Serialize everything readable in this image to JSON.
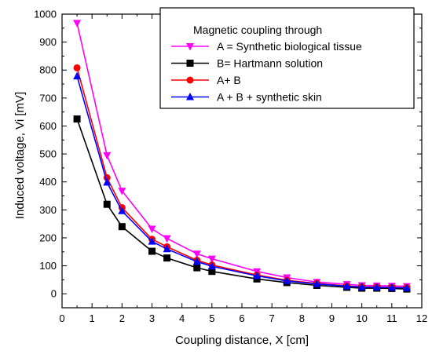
{
  "chart_data": {
    "type": "line",
    "xlabel": "Coupling distance, X [cm]",
    "ylabel": "Induced voltage, Vi [mV]",
    "xlim": [
      0,
      12
    ],
    "ylim": [
      -50,
      1000
    ],
    "xticks": [
      "0",
      "1",
      "2",
      "3",
      "4",
      "5",
      "6",
      "7",
      "8",
      "9",
      "10",
      "11",
      "12"
    ],
    "yticks": [
      "0",
      "100",
      "200",
      "300",
      "400",
      "500",
      "600",
      "700",
      "800",
      "900",
      "1000"
    ],
    "grid": false,
    "legend": {
      "title": "Magnetic coupling through",
      "placement": "top-right"
    },
    "x": [
      0.5,
      1.5,
      2,
      3,
      3.5,
      4.5,
      5,
      6.5,
      7.5,
      8.5,
      9.5,
      10,
      10.5,
      11,
      11.5
    ],
    "series": [
      {
        "name": "A = Synthetic biological tissue",
        "color": "#ff00ff",
        "marker": "triangle-down",
        "values": [
          968,
          495,
          368,
          232,
          198,
          143,
          125,
          80,
          58,
          42,
          34,
          30,
          29,
          28,
          27
        ]
      },
      {
        "name": "B= Hartmann solution",
        "color": "#000000",
        "marker": "square",
        "values": [
          625,
          320,
          240,
          152,
          128,
          93,
          80,
          53,
          40,
          30,
          23,
          20,
          20,
          19,
          17
        ]
      },
      {
        "name": "A+ B",
        "color": "#ff0000",
        "marker": "circle",
        "values": [
          808,
          415,
          308,
          195,
          168,
          120,
          103,
          67,
          48,
          37,
          28,
          25,
          24,
          23,
          22
        ]
      },
      {
        "name": "A + B + synthetic skin",
        "color": "#0000ff",
        "marker": "triangle-up",
        "values": [
          778,
          398,
          296,
          187,
          160,
          115,
          98,
          64,
          46,
          35,
          27,
          24,
          23,
          22,
          21
        ]
      }
    ]
  }
}
